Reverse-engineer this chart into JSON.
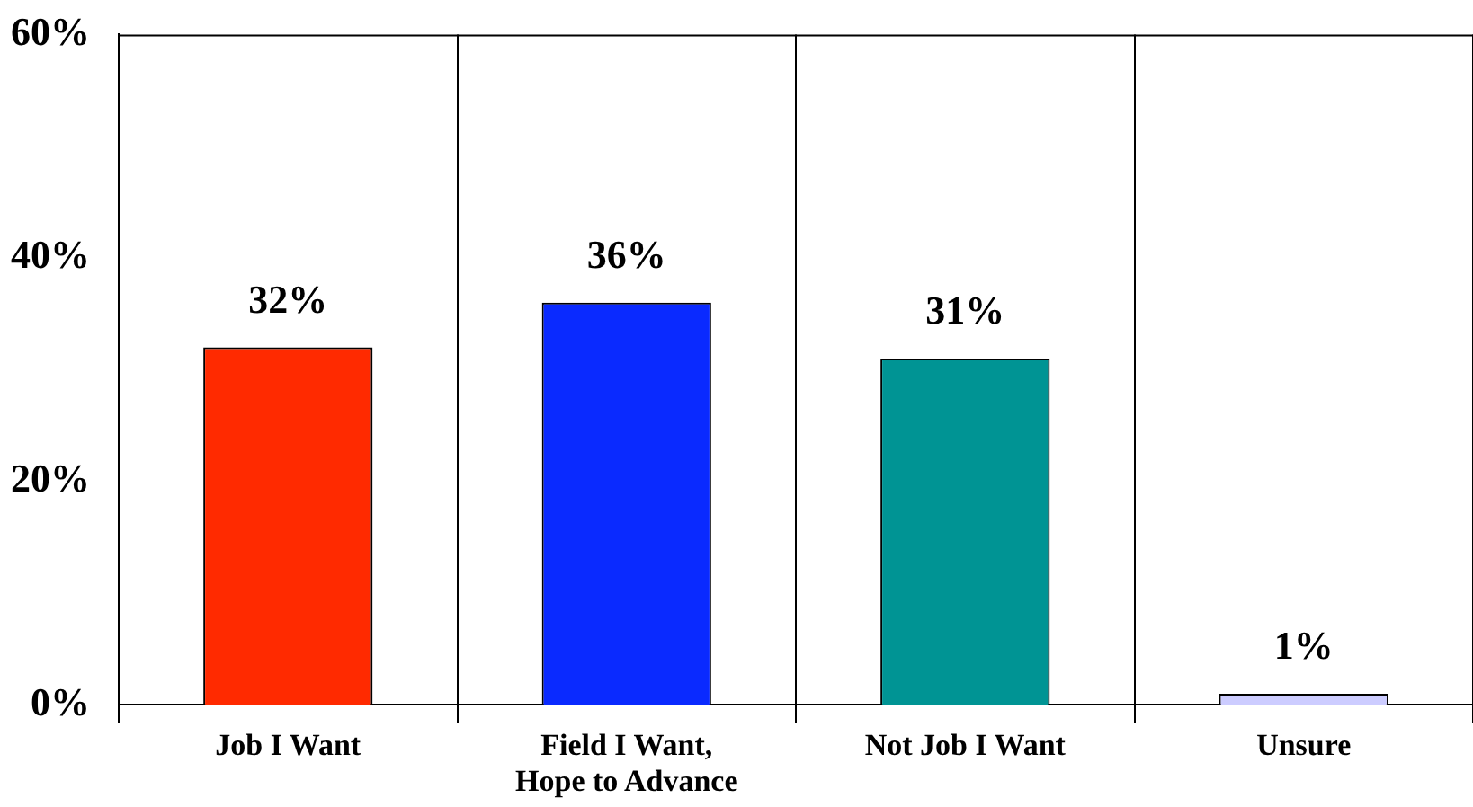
{
  "chart_data": {
    "type": "bar",
    "categories": [
      "Job I Want",
      "Field I Want, Hope to Advance",
      "Not Job I Want",
      "Unsure"
    ],
    "values": [
      32,
      36,
      31,
      1
    ],
    "colors": [
      "#ff2a00",
      "#0a2aff",
      "#009494",
      "#ccccff"
    ],
    "value_labels": [
      "32%",
      "36%",
      "31%",
      "1%"
    ],
    "ylim": [
      0,
      60
    ],
    "yticks": [
      {
        "value": 0,
        "label": "0%"
      },
      {
        "value": 20,
        "label": "20%"
      },
      {
        "value": 40,
        "label": "40%"
      },
      {
        "value": 60,
        "label": "60%"
      }
    ],
    "grid": "x",
    "legend": false
  }
}
